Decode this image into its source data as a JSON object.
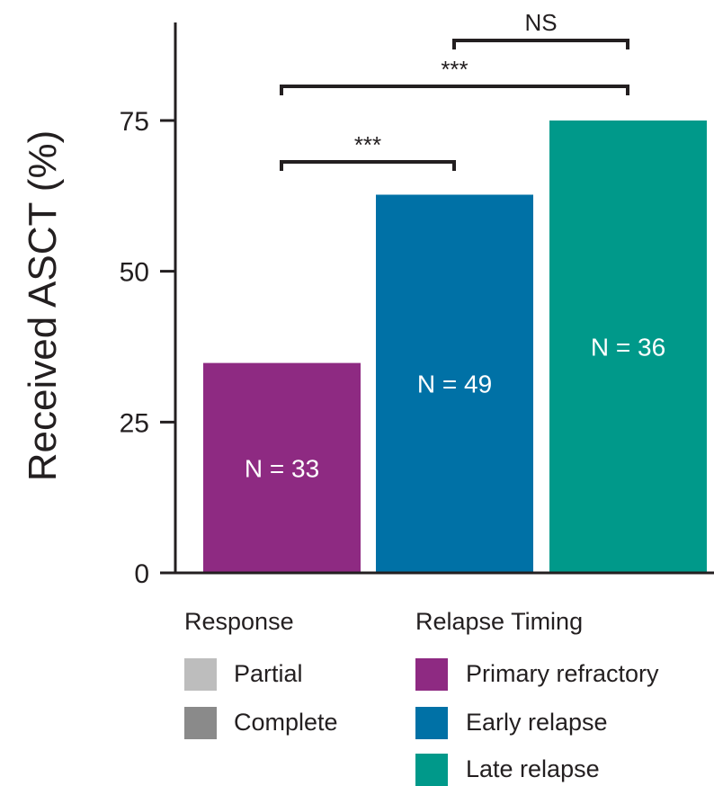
{
  "chart_data": {
    "type": "bar",
    "ylabel": "Received ASCT (%)",
    "ylim": [
      0,
      90
    ],
    "yticks": [
      0,
      25,
      50,
      75
    ],
    "categories": [
      "Primary refractory",
      "Early relapse",
      "Late relapse"
    ],
    "values": [
      34.8,
      62.7,
      75.0
    ],
    "colors": [
      "#8e2a82",
      "#0071a6",
      "#00998a"
    ],
    "bar_labels": [
      "N = 33",
      "N = 49",
      "N = 36"
    ],
    "significance": [
      {
        "from": 0,
        "to": 1,
        "label": "***"
      },
      {
        "from": 0,
        "to": 2,
        "label": "***"
      },
      {
        "from": 1,
        "to": 2,
        "label": "NS"
      }
    ],
    "legend": {
      "response": {
        "title": "Response",
        "items": [
          {
            "label": "Partial",
            "color": "#bdbdbd"
          },
          {
            "label": "Complete",
            "color": "#8a8a8a"
          }
        ]
      },
      "relapse_timing": {
        "title": "Relapse Timing",
        "items": [
          {
            "label": "Primary refractory",
            "color": "#8e2a82"
          },
          {
            "label": "Early relapse",
            "color": "#0071a6"
          },
          {
            "label": "Late relapse",
            "color": "#00998a"
          }
        ]
      }
    }
  }
}
